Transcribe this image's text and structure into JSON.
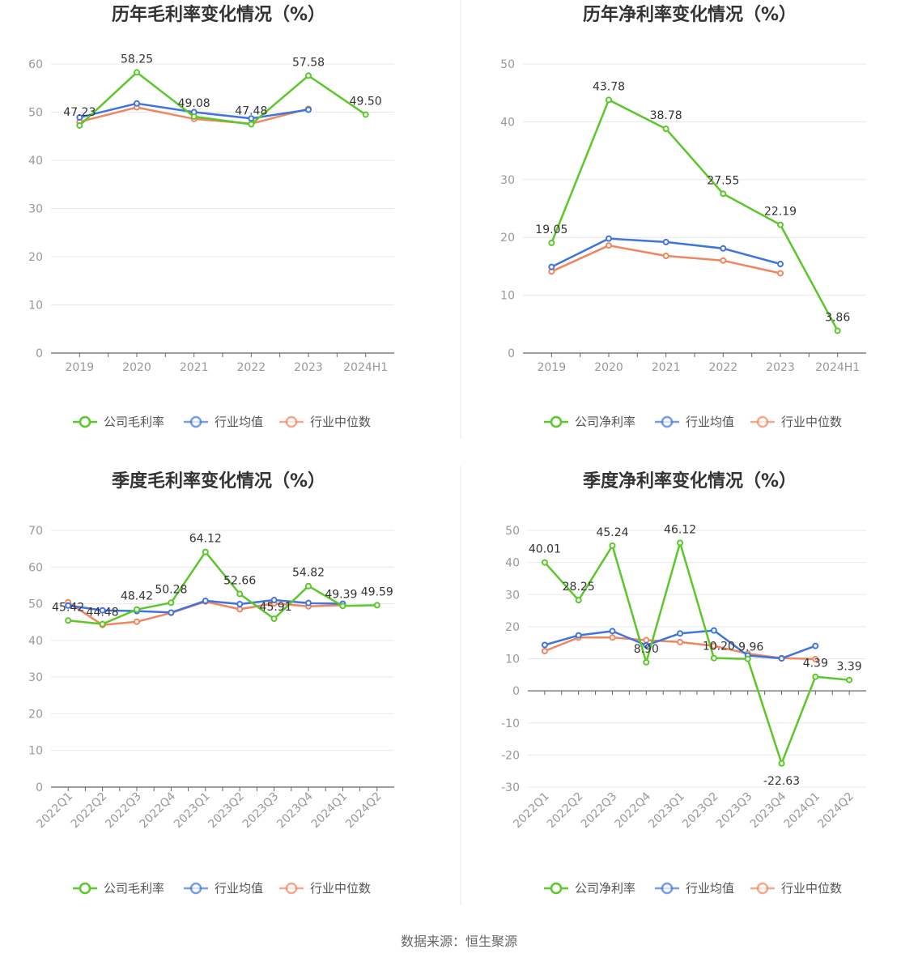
{
  "source": "数据来源：恒生聚源",
  "colors": {
    "company": "#5cc72a",
    "average": "#3f74e0",
    "median": "#f0855f",
    "grid": "#e6e8f0",
    "axis": "#666666"
  },
  "chart_data": [
    {
      "type": "line",
      "title": "历年毛利率变化情况（%）",
      "categories": [
        "2019",
        "2020",
        "2021",
        "2022",
        "2023",
        "2024H1"
      ],
      "ylim": [
        0,
        60
      ],
      "yticks": [
        0,
        10,
        20,
        30,
        40,
        50,
        60
      ],
      "grid": true,
      "legend": "bottom",
      "series": [
        {
          "name": "公司毛利率",
          "key": "company",
          "values": [
            47.23,
            58.25,
            49.08,
            47.48,
            57.58,
            49.5
          ],
          "labels": [
            "47.23",
            "58.25",
            "49.08",
            "47.48",
            "57.58",
            "49.50"
          ]
        },
        {
          "name": "行业均值",
          "key": "average",
          "values": [
            48.9,
            51.8,
            50.0,
            48.7,
            50.5,
            null
          ]
        },
        {
          "name": "行业中位数",
          "key": "median",
          "values": [
            48.0,
            51.0,
            48.6,
            47.6,
            50.7,
            null
          ]
        }
      ]
    },
    {
      "type": "line",
      "title": "历年净利率变化情况（%）",
      "categories": [
        "2019",
        "2020",
        "2021",
        "2022",
        "2023",
        "2024H1"
      ],
      "ylim": [
        0,
        50
      ],
      "yticks": [
        0,
        10,
        20,
        30,
        40,
        50
      ],
      "grid": true,
      "legend": "bottom",
      "series": [
        {
          "name": "公司净利率",
          "key": "company",
          "values": [
            19.05,
            43.78,
            38.78,
            27.55,
            22.19,
            3.86
          ],
          "labels": [
            "19.05",
            "43.78",
            "38.78",
            "27.55",
            "22.19",
            "3.86"
          ]
        },
        {
          "name": "行业均值",
          "key": "average",
          "values": [
            14.9,
            19.8,
            19.2,
            18.1,
            15.4,
            null
          ]
        },
        {
          "name": "行业中位数",
          "key": "median",
          "values": [
            14.1,
            18.6,
            16.8,
            16.0,
            13.8,
            null
          ]
        }
      ]
    },
    {
      "type": "line",
      "title": "季度毛利率变化情况（%）",
      "categories": [
        "2022Q1",
        "2022Q2",
        "2022Q3",
        "2022Q4",
        "2023Q1",
        "2023Q2",
        "2023Q3",
        "2023Q4",
        "2024Q1",
        "2024Q2"
      ],
      "ylim": [
        0,
        70
      ],
      "yticks": [
        0,
        10,
        20,
        30,
        40,
        50,
        60,
        70
      ],
      "grid": true,
      "legend": "bottom",
      "series": [
        {
          "name": "公司毛利率",
          "key": "company",
          "values": [
            45.42,
            44.48,
            48.42,
            50.28,
            64.12,
            52.66,
            45.91,
            54.82,
            49.39,
            49.59
          ],
          "labels": [
            "45.42",
            "44.48",
            "48.42",
            "50.28",
            "64.12",
            "52.66",
            "45.91",
            "54.82",
            "49.39",
            "49.59"
          ]
        },
        {
          "name": "行业均值",
          "key": "average",
          "values": [
            49.5,
            48.2,
            48.0,
            47.6,
            50.8,
            49.9,
            51.0,
            50.2,
            50.0,
            null
          ]
        },
        {
          "name": "行业中位数",
          "key": "median",
          "values": [
            50.4,
            44.2,
            45.1,
            47.5,
            50.6,
            48.5,
            50.1,
            49.3,
            49.6,
            null
          ]
        }
      ]
    },
    {
      "type": "line",
      "title": "季度净利率变化情况（%）",
      "categories": [
        "2022Q1",
        "2022Q2",
        "2022Q3",
        "2022Q4",
        "2023Q1",
        "2023Q2",
        "2023Q3",
        "2023Q4",
        "2024Q1",
        "2024Q2"
      ],
      "ylim": [
        -30,
        50
      ],
      "yticks": [
        -30,
        -20,
        -10,
        0,
        10,
        20,
        30,
        40,
        50
      ],
      "grid": true,
      "legend": "bottom",
      "series": [
        {
          "name": "公司净利率",
          "key": "company",
          "values": [
            40.01,
            28.25,
            45.24,
            8.9,
            46.12,
            10.2,
            9.96,
            -22.63,
            4.39,
            3.39
          ],
          "labels": [
            "40.01",
            "28.25",
            "45.24",
            "8.90",
            "46.12",
            "10.20",
            "9.96",
            "-22.63",
            "4.39",
            "3.39"
          ]
        },
        {
          "name": "行业均值",
          "key": "average",
          "values": [
            14.3,
            17.3,
            18.6,
            14.2,
            17.9,
            18.8,
            11.0,
            10.1,
            14.0,
            null
          ]
        },
        {
          "name": "行业中位数",
          "key": "median",
          "values": [
            12.4,
            16.6,
            16.6,
            15.8,
            15.2,
            14.0,
            11.6,
            10.2,
            9.9,
            null
          ]
        }
      ]
    }
  ]
}
